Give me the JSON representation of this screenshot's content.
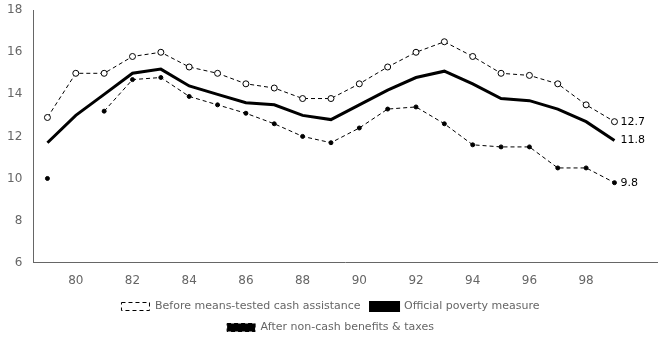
{
  "chart_data": {
    "type": "line",
    "x": [
      1979,
      1980,
      1981,
      1982,
      1983,
      1984,
      1985,
      1986,
      1987,
      1988,
      1989,
      1990,
      1991,
      1992,
      1993,
      1994,
      1995,
      1996,
      1997,
      1998,
      1999
    ],
    "series": [
      {
        "name": "Before means-tested cash assistance",
        "color": "#000000",
        "marker": "circle",
        "line_style": "dashed",
        "values": [
          12.9,
          15.0,
          15.0,
          15.8,
          16.0,
          15.3,
          15.0,
          14.5,
          14.3,
          13.8,
          13.8,
          14.5,
          15.3,
          16.0,
          16.5,
          15.8,
          15.0,
          14.9,
          14.5,
          13.5,
          12.7
        ]
      },
      {
        "name": "Official poverty measure",
        "color": "#000000",
        "marker": "none",
        "line_style": "solid",
        "values": [
          11.7,
          13.0,
          14.0,
          15.0,
          15.2,
          14.4,
          14.0,
          13.6,
          13.5,
          13.0,
          12.8,
          13.5,
          14.2,
          14.8,
          15.1,
          14.5,
          13.8,
          13.7,
          13.3,
          12.7,
          11.8
        ]
      },
      {
        "name": "After non-cash benefits & taxes",
        "color": "#000000",
        "marker": "dot",
        "line_style": "dashed",
        "values": [
          10.0,
          null,
          13.2,
          14.7,
          14.8,
          13.9,
          13.5,
          13.1,
          12.6,
          12.0,
          11.7,
          12.4,
          13.3,
          13.4,
          12.6,
          11.6,
          11.5,
          11.5,
          10.5,
          10.5,
          9.8
        ]
      }
    ],
    "annotations": [
      {
        "text": "12.7",
        "x": 1999,
        "y": 12.7
      },
      {
        "text": "11.8",
        "x": 1999,
        "y": 11.8
      },
      {
        "text": "9.8",
        "x": 1999,
        "y": 9.8
      }
    ],
    "xlim": [
      1978.5,
      2000.5
    ],
    "xticks": [
      {
        "value": 1980,
        "label": "80"
      },
      {
        "value": 1982,
        "label": "82"
      },
      {
        "value": 1984,
        "label": "84"
      },
      {
        "value": 1986,
        "label": "86"
      },
      {
        "value": 1988,
        "label": "88"
      },
      {
        "value": 1990,
        "label": "90"
      },
      {
        "value": 1992,
        "label": "92"
      },
      {
        "value": 1994,
        "label": "94"
      },
      {
        "value": 1996,
        "label": "96"
      },
      {
        "value": 1998,
        "label": "98"
      }
    ],
    "ylim": [
      6,
      18
    ],
    "yticks": [
      6,
      8,
      10,
      12,
      14,
      16,
      18
    ],
    "grid": false,
    "legend": "bottom"
  }
}
